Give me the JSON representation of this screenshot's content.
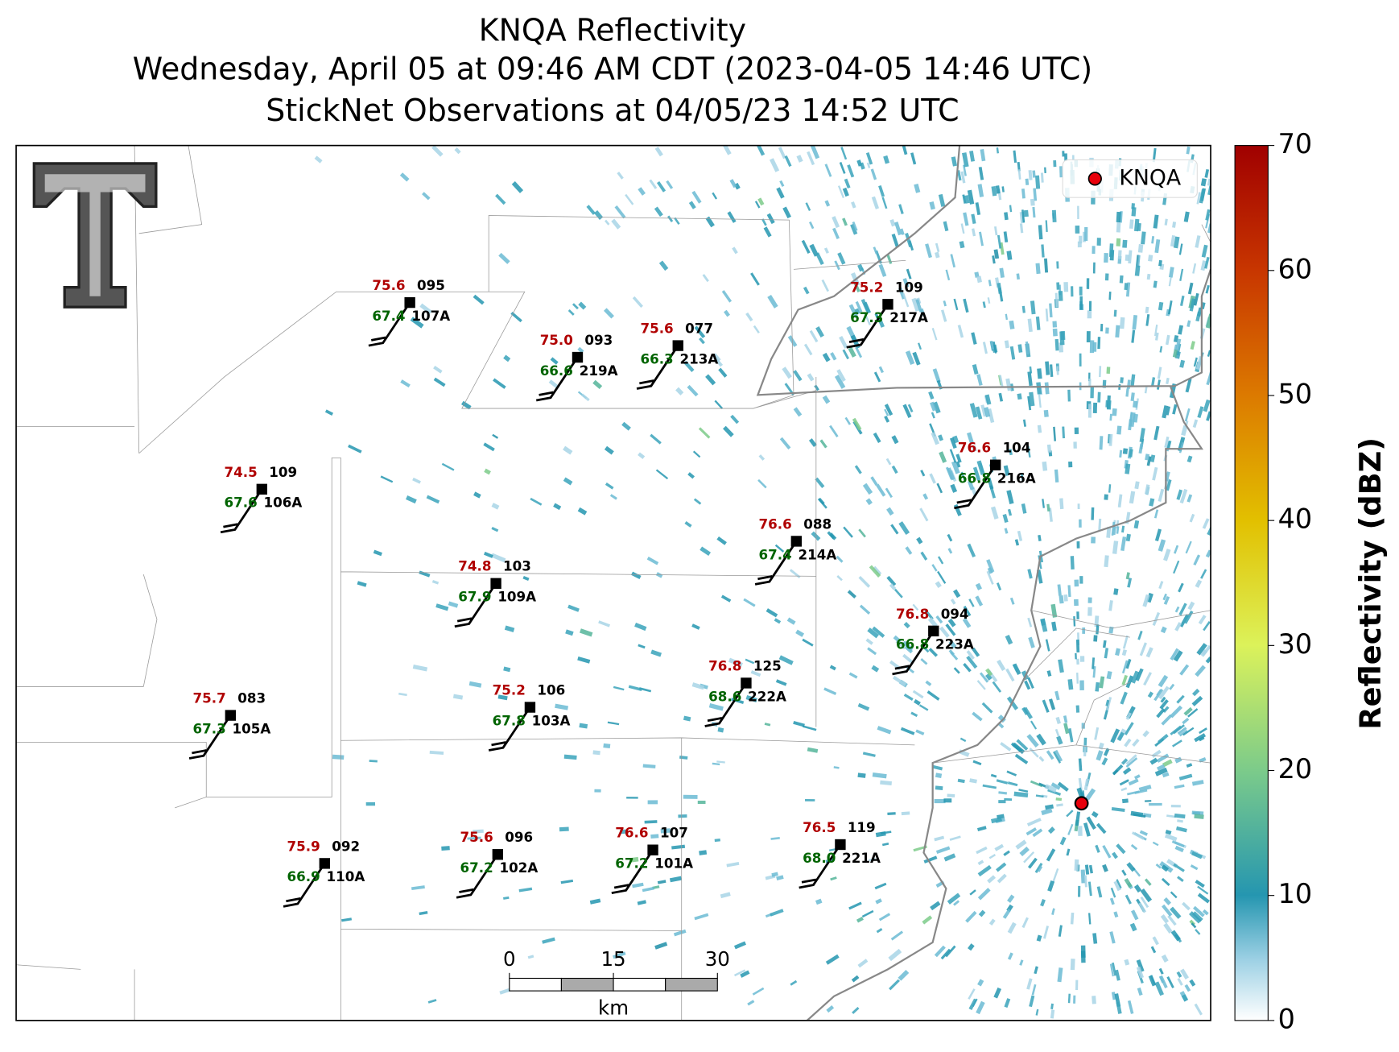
{
  "title": [
    "KNQA Reflectivity",
    "Wednesday, April 05 at 09:46 AM CDT (2023-04-05 14:46 UTC)",
    "StickNet Observations at 04/05/23 14:52 UTC"
  ],
  "legend": "KNQA",
  "colorbar": {
    "label": "Reflectivity (dBZ)",
    "lim": [
      0,
      70
    ],
    "ticks": [
      0,
      10,
      20,
      30,
      40,
      50,
      60,
      70
    ]
  },
  "scale_bar": {
    "ticks": [
      0,
      15,
      30
    ],
    "unit": "km"
  },
  "stations": [
    {
      "temp": "75.6",
      "pres": "095",
      "dew": "67.4",
      "id": "107A"
    },
    {
      "temp": "75.0",
      "pres": "093",
      "dew": "66.6",
      "id": "219A"
    },
    {
      "temp": "75.6",
      "pres": "077",
      "dew": "66.3",
      "id": "213A"
    },
    {
      "temp": "75.2",
      "pres": "109",
      "dew": "67.3",
      "id": "217A"
    },
    {
      "temp": "74.5",
      "pres": "109",
      "dew": "67.6",
      "id": "106A"
    },
    {
      "temp": "76.6",
      "pres": "104",
      "dew": "66.8",
      "id": "216A"
    },
    {
      "temp": "76.6",
      "pres": "088",
      "dew": "67.4",
      "id": "214A"
    },
    {
      "temp": "74.8",
      "pres": "103",
      "dew": "67.9",
      "id": "109A"
    },
    {
      "temp": "76.8",
      "pres": "094",
      "dew": "66.8",
      "id": "223A"
    },
    {
      "temp": "76.8",
      "pres": "125",
      "dew": "68.6",
      "id": "222A"
    },
    {
      "temp": "75.2",
      "pres": "106",
      "dew": "67.8",
      "id": "103A"
    },
    {
      "temp": "75.7",
      "pres": "083",
      "dew": "67.3",
      "id": "105A"
    },
    {
      "temp": "76.5",
      "pres": "119",
      "dew": "68.0",
      "id": "221A"
    },
    {
      "temp": "75.9",
      "pres": "092",
      "dew": "66.9",
      "id": "110A"
    },
    {
      "temp": "75.6",
      "pres": "096",
      "dew": "67.2",
      "id": "102A"
    },
    {
      "temp": "76.6",
      "pres": "107",
      "dew": "67.2",
      "id": "101A"
    }
  ]
}
